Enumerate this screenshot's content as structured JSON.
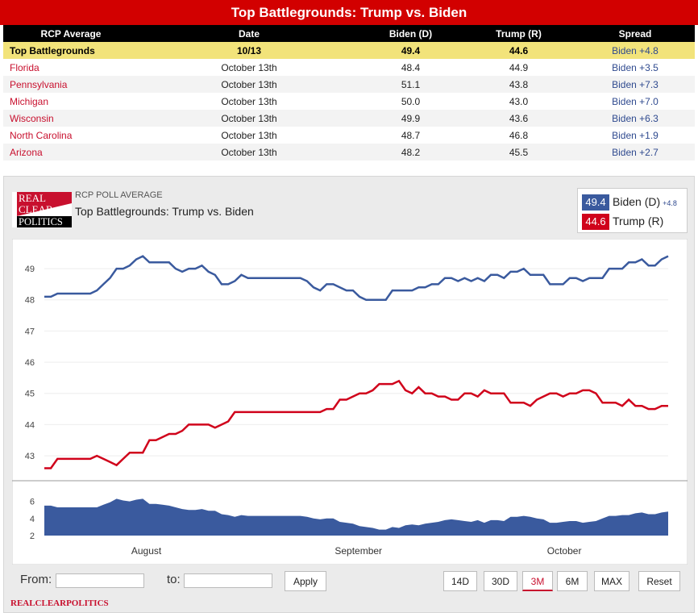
{
  "title": "Top Battlegrounds: Trump vs. Biden",
  "table": {
    "headers": [
      "RCP Average",
      "Date",
      "Biden (D)",
      "Trump (R)",
      "Spread"
    ],
    "average": {
      "poll": "Top Battlegrounds",
      "date": "10/13",
      "biden": "49.4",
      "trump": "44.6",
      "spread": "Biden +4.8"
    },
    "rows": [
      {
        "poll": "Florida",
        "date": "October 13th",
        "biden": "48.4",
        "trump": "44.9",
        "spread": "Biden +3.5"
      },
      {
        "poll": "Pennsylvania",
        "date": "October 13th",
        "biden": "51.1",
        "trump": "43.8",
        "spread": "Biden +7.3"
      },
      {
        "poll": "Michigan",
        "date": "October 13th",
        "biden": "50.0",
        "trump": "43.0",
        "spread": "Biden +7.0"
      },
      {
        "poll": "Wisconsin",
        "date": "October 13th",
        "biden": "49.9",
        "trump": "43.6",
        "spread": "Biden +6.3"
      },
      {
        "poll": "North Carolina",
        "date": "October 13th",
        "biden": "48.7",
        "trump": "46.8",
        "spread": "Biden +1.9"
      },
      {
        "poll": "Arizona",
        "date": "October 13th",
        "biden": "48.2",
        "trump": "45.5",
        "spread": "Biden +2.7"
      }
    ]
  },
  "panel": {
    "logo_lines": [
      "REAL",
      "CLEAR",
      "POLITICS"
    ],
    "subtitle": "RCP POLL AVERAGE",
    "title": "Top Battlegrounds: Trump vs. Biden",
    "legend": {
      "biden_value": "49.4",
      "biden_label": "Biden (D)",
      "biden_spread": "+4.8",
      "trump_value": "44.6",
      "trump_label": "Trump (R)"
    },
    "controls": {
      "from_label": "From:",
      "to_label": "to:",
      "apply_label": "Apply",
      "ranges": [
        "14D",
        "30D",
        "3M",
        "6M",
        "MAX"
      ],
      "active_range": "3M",
      "reset_label": "Reset"
    },
    "brand": "REALCLEARPOLITICS"
  },
  "colors": {
    "biden": "#3a5a9e",
    "trump": "#d0021b",
    "spread_fill": "#3a5a9e",
    "header": "#d20000"
  },
  "chart_data": {
    "type": "line",
    "x_ticks": [
      "August",
      "September",
      "October"
    ],
    "ylim": [
      42.2,
      49.7
    ],
    "y_ticks": [
      43,
      44,
      45,
      46,
      47,
      48,
      49
    ],
    "series": [
      {
        "name": "Biden (D)",
        "values": [
          48.1,
          48.1,
          48.2,
          48.2,
          48.2,
          48.2,
          48.2,
          48.2,
          48.3,
          48.5,
          48.7,
          49.0,
          49.0,
          49.1,
          49.3,
          49.4,
          49.2,
          49.2,
          49.2,
          49.2,
          49.0,
          48.9,
          49.0,
          49.0,
          49.1,
          48.9,
          48.8,
          48.5,
          48.5,
          48.6,
          48.8,
          48.7,
          48.7,
          48.7,
          48.7,
          48.7,
          48.7,
          48.7,
          48.7,
          48.7,
          48.6,
          48.4,
          48.3,
          48.5,
          48.5,
          48.4,
          48.3,
          48.3,
          48.1,
          48.0,
          48.0,
          48.0,
          48.0,
          48.3,
          48.3,
          48.3,
          48.3,
          48.4,
          48.4,
          48.5,
          48.5,
          48.7,
          48.7,
          48.6,
          48.7,
          48.6,
          48.7,
          48.6,
          48.8,
          48.8,
          48.7,
          48.9,
          48.9,
          49.0,
          48.8,
          48.8,
          48.8,
          48.5,
          48.5,
          48.5,
          48.7,
          48.7,
          48.6,
          48.7,
          48.7,
          48.7,
          49.0,
          49.0,
          49.0,
          49.2,
          49.2,
          49.3,
          49.1,
          49.1,
          49.3,
          49.4
        ]
      },
      {
        "name": "Trump (R)",
        "values": [
          42.6,
          42.6,
          42.9,
          42.9,
          42.9,
          42.9,
          42.9,
          42.9,
          43.0,
          42.9,
          42.8,
          42.7,
          42.9,
          43.1,
          43.1,
          43.1,
          43.5,
          43.5,
          43.6,
          43.7,
          43.7,
          43.8,
          44.0,
          44.0,
          44.0,
          44.0,
          43.9,
          44.0,
          44.1,
          44.4,
          44.4,
          44.4,
          44.4,
          44.4,
          44.4,
          44.4,
          44.4,
          44.4,
          44.4,
          44.4,
          44.4,
          44.4,
          44.4,
          44.5,
          44.5,
          44.8,
          44.8,
          44.9,
          45.0,
          45.0,
          45.1,
          45.3,
          45.3,
          45.3,
          45.4,
          45.1,
          45.0,
          45.2,
          45.0,
          45.0,
          44.9,
          44.9,
          44.8,
          44.8,
          45.0,
          45.0,
          44.9,
          45.1,
          45.0,
          45.0,
          45.0,
          44.7,
          44.7,
          44.7,
          44.6,
          44.8,
          44.9,
          45.0,
          45.0,
          44.9,
          45.0,
          45.0,
          45.1,
          45.1,
          45.0,
          44.7,
          44.7,
          44.7,
          44.6,
          44.8,
          44.6,
          44.6,
          44.5,
          44.5,
          44.6,
          44.6
        ]
      },
      {
        "name": "Spread",
        "ylim": [
          2,
          7
        ],
        "y_ticks": [
          2,
          4,
          6
        ],
        "values": [
          5.5,
          5.5,
          5.3,
          5.3,
          5.3,
          5.3,
          5.3,
          5.3,
          5.3,
          5.6,
          5.9,
          6.3,
          6.1,
          6.0,
          6.2,
          6.3,
          5.7,
          5.7,
          5.6,
          5.5,
          5.3,
          5.1,
          5.0,
          5.0,
          5.1,
          4.9,
          4.9,
          4.5,
          4.4,
          4.2,
          4.4,
          4.3,
          4.3,
          4.3,
          4.3,
          4.3,
          4.3,
          4.3,
          4.3,
          4.3,
          4.2,
          4.0,
          3.9,
          4.0,
          4.0,
          3.6,
          3.5,
          3.4,
          3.1,
          3.0,
          2.9,
          2.7,
          2.7,
          3.0,
          2.9,
          3.2,
          3.3,
          3.2,
          3.4,
          3.5,
          3.6,
          3.8,
          3.9,
          3.8,
          3.7,
          3.6,
          3.8,
          3.5,
          3.8,
          3.8,
          3.7,
          4.2,
          4.2,
          4.3,
          4.2,
          4.0,
          3.9,
          3.5,
          3.5,
          3.6,
          3.7,
          3.7,
          3.5,
          3.6,
          3.7,
          4.0,
          4.3,
          4.3,
          4.4,
          4.4,
          4.6,
          4.7,
          4.5,
          4.5,
          4.7,
          4.8
        ]
      }
    ]
  }
}
